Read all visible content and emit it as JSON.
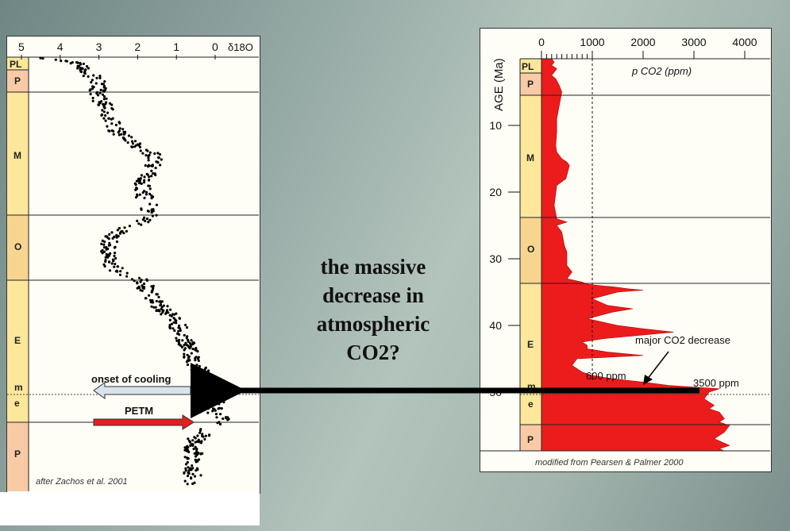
{
  "center_text_lines": [
    "the massive",
    "decrease in",
    "atmospheric",
    "CO2?"
  ],
  "chart_data": [
    {
      "type": "scatter",
      "x_axis_label": "δ18O",
      "x_ticks": [
        "5",
        "4",
        "3",
        "2",
        "1",
        "0"
      ],
      "xlim": [
        5.2,
        -0.8
      ],
      "ylim_age_ma": [
        0,
        65
      ],
      "epochs": [
        "PL",
        "P",
        "M",
        "O",
        "E",
        "m",
        "e",
        "P"
      ],
      "annotations": [
        "onset of cooling",
        "PETM"
      ],
      "credit": "after Zachos et al. 2001",
      "trend": [
        [
          0,
          4.7
        ],
        [
          0.5,
          4.0
        ],
        [
          1,
          3.6
        ],
        [
          1.5,
          3.45
        ],
        [
          2,
          3.3
        ],
        [
          3,
          3.15
        ],
        [
          4,
          3.0
        ],
        [
          5,
          3.05
        ],
        [
          6,
          3.0
        ],
        [
          7,
          2.9
        ],
        [
          8,
          2.8
        ],
        [
          9,
          2.75
        ],
        [
          10,
          2.65
        ],
        [
          11,
          2.6
        ],
        [
          12,
          2.4
        ],
        [
          13,
          2.15
        ],
        [
          14,
          1.8
        ],
        [
          15,
          1.6
        ],
        [
          16,
          1.55
        ],
        [
          17,
          1.65
        ],
        [
          18,
          1.75
        ],
        [
          19,
          1.85
        ],
        [
          20,
          1.9
        ],
        [
          21,
          1.85
        ],
        [
          22,
          1.75
        ],
        [
          23,
          1.7
        ],
        [
          24,
          1.6
        ],
        [
          25,
          1.9
        ],
        [
          26,
          2.3
        ],
        [
          27,
          2.6
        ],
        [
          28,
          2.75
        ],
        [
          29,
          2.8
        ],
        [
          30,
          2.8
        ],
        [
          31,
          2.75
        ],
        [
          32,
          2.6
        ],
        [
          33,
          2.3
        ],
        [
          34,
          1.85
        ],
        [
          35,
          1.8
        ],
        [
          36,
          1.7
        ],
        [
          37,
          1.55
        ],
        [
          38,
          1.4
        ],
        [
          39,
          1.2
        ],
        [
          40,
          1.05
        ],
        [
          41,
          0.95
        ],
        [
          42,
          0.85
        ],
        [
          43,
          0.8
        ],
        [
          44,
          0.7
        ],
        [
          45,
          0.65
        ],
        [
          46,
          0.55
        ],
        [
          47,
          0.45
        ],
        [
          48,
          0.35
        ],
        [
          49,
          0.2
        ],
        [
          50,
          0.1
        ],
        [
          51,
          -0.05
        ],
        [
          52,
          -0.1
        ],
        [
          53,
          -0.05
        ],
        [
          54,
          0.05
        ],
        [
          55,
          -0.2
        ],
        [
          56,
          0.1
        ],
        [
          57,
          0.3
        ],
        [
          58,
          0.5
        ],
        [
          59,
          0.6
        ],
        [
          60,
          0.55
        ],
        [
          61,
          0.6
        ],
        [
          62,
          0.65
        ],
        [
          63,
          0.6
        ],
        [
          64,
          0.55
        ],
        [
          65,
          0.6
        ]
      ]
    },
    {
      "type": "area",
      "xlabel": "p CO2 (ppm)",
      "ylabel": "AGE (Ma)",
      "x_ticks": [
        "0",
        "1000",
        "2000",
        "3000",
        "4000"
      ],
      "y_ticks": [
        "10",
        "20",
        "30",
        "40",
        "50"
      ],
      "xlim": [
        0,
        4500
      ],
      "ylim": [
        0,
        60
      ],
      "dashed_x_reference": 1000,
      "epochs": [
        "PL",
        "P",
        "M",
        "O",
        "E",
        "m",
        "e",
        "P"
      ],
      "annotations": [
        "major CO2 decrease",
        "600 ppm",
        "3500 ppm"
      ],
      "credit": "modified from Pearsen & Palmer 2000",
      "series": [
        {
          "x": [
            200,
            250,
            200,
            300,
            250,
            200,
            280,
            350,
            400,
            350,
            300,
            300,
            280,
            300,
            400,
            500,
            550,
            480,
            300,
            250,
            300,
            500,
            300,
            400,
            450,
            500,
            500,
            600,
            500,
            800,
            900,
            1100,
            1400,
            1700,
            2000,
            1500,
            1000,
            1300,
            1800,
            1400,
            900,
            1500,
            2000,
            2600,
            1200,
            800,
            900,
            900,
            1300,
            2000,
            700,
            600,
            800,
            1000,
            1400,
            2000,
            2500,
            3500,
            3300,
            3200,
            3400,
            3300,
            3500,
            3600,
            3500,
            3700,
            3600,
            3500,
            3400,
            3700,
            3500,
            3600,
            3700,
            3600
          ],
          "y": [
            0,
            0.5,
            1,
            1.5,
            2,
            2.5,
            3,
            4,
            5,
            7,
            9,
            11,
            13,
            14,
            15,
            15.5,
            16,
            18,
            19,
            22,
            24,
            24.5,
            25,
            26,
            28,
            29,
            31,
            32,
            33,
            33.5,
            33.8,
            34.0,
            34.2,
            34.5,
            34.7,
            35.0,
            36,
            37,
            37.5,
            38,
            39,
            40,
            40.5,
            41,
            42,
            42.5,
            43,
            43.5,
            44,
            44.5,
            45,
            46,
            47.0,
            47.5,
            48,
            48.5,
            49.0,
            49.5,
            50,
            51,
            52,
            52.5,
            53,
            54,
            54.5,
            55,
            56,
            56.5,
            57,
            58,
            58.5,
            59,
            59.5,
            60
          ]
        }
      ]
    }
  ]
}
